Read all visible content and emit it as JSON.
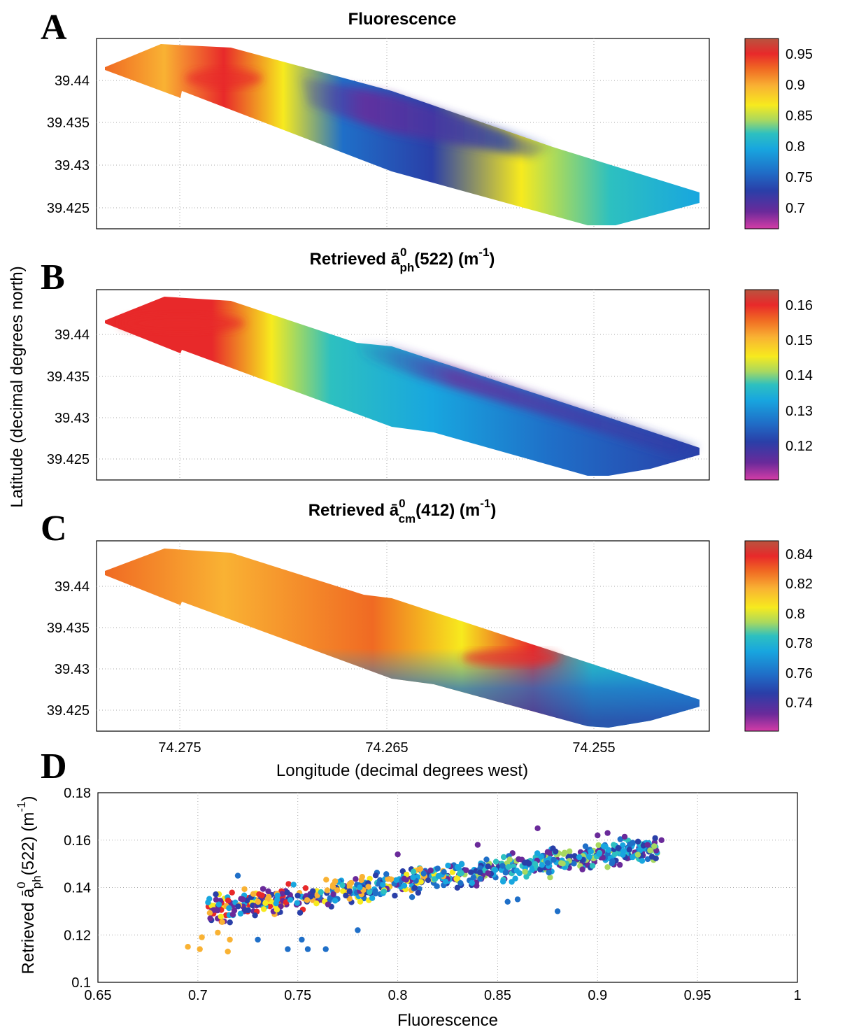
{
  "chart_data": [
    {
      "panel": "A",
      "type": "heatmap",
      "title": "Fluorescence",
      "ylabel": "Latitude (decimal degrees north)",
      "yticks": [
        "39.44",
        "39.435",
        "39.43",
        "39.425"
      ],
      "ylim": [
        39.4227,
        39.4447
      ],
      "colorbar": {
        "ticks": [
          "0.95",
          "0.9",
          "0.85",
          "0.8",
          "0.75",
          "0.7"
        ],
        "range": [
          0.665,
          0.975
        ]
      }
    },
    {
      "panel": "B",
      "type": "heatmap",
      "title_prefix": "Retrieved ",
      "title_symbol": "ā",
      "title_sup": "0",
      "title_sub": "ph",
      "title_mid": "(522) (m",
      "title_unit_sup": "-1",
      "title_suffix": ")",
      "yticks": [
        "39.44",
        "39.435",
        "39.43",
        "39.425"
      ],
      "colorbar": {
        "ticks": [
          "0.16",
          "0.15",
          "0.14",
          "0.13",
          "0.12"
        ],
        "range": [
          0.11,
          0.164
        ]
      }
    },
    {
      "panel": "C",
      "type": "heatmap",
      "title_prefix": "Retrieved ",
      "title_symbol": "ā",
      "title_sup": "0",
      "title_sub": "cm",
      "title_mid": "(412) (m",
      "title_unit_sup": "-1",
      "title_suffix": ")",
      "yticks": [
        "39.44",
        "39.435",
        "39.43",
        "39.425"
      ],
      "xticks": [
        "74.275",
        "74.265",
        "74.255"
      ],
      "xlabel": "Longitude (decimal degrees west)",
      "colorbar": {
        "ticks": [
          "0.84",
          "0.82",
          "0.8",
          "0.78",
          "0.76",
          "0.74"
        ],
        "range": [
          0.725,
          0.847
        ]
      }
    },
    {
      "panel": "D",
      "type": "scatter",
      "xlabel": "Fluorescence",
      "ylabel_prefix": "Retrieved ",
      "ylabel_symbol": "ā",
      "ylabel_sup": "0",
      "ylabel_sub": "ph",
      "ylabel_mid": "(522) (m",
      "ylabel_unit_sup": "-1",
      "ylabel_suffix": ")",
      "xlim": [
        0.65,
        1.0
      ],
      "ylim": [
        0.1,
        0.18
      ],
      "xticks": [
        "0.65",
        "0.7",
        "0.75",
        "0.8",
        "0.85",
        "0.9",
        "0.95",
        "1"
      ],
      "yticks": [
        "0.1",
        "0.12",
        "0.14",
        "0.16",
        "0.18"
      ],
      "grid": true,
      "sample_points": [
        [
          0.695,
          0.115
        ],
        [
          0.701,
          0.114
        ],
        [
          0.702,
          0.119
        ],
        [
          0.715,
          0.113
        ],
        [
          0.716,
          0.118
        ],
        [
          0.71,
          0.121
        ],
        [
          0.72,
          0.145
        ],
        [
          0.73,
          0.118
        ],
        [
          0.745,
          0.114
        ],
        [
          0.752,
          0.118
        ],
        [
          0.755,
          0.114
        ],
        [
          0.764,
          0.114
        ],
        [
          0.78,
          0.122
        ],
        [
          0.8,
          0.154
        ],
        [
          0.84,
          0.158
        ],
        [
          0.87,
          0.165
        ],
        [
          0.9,
          0.162
        ],
        [
          0.905,
          0.163
        ],
        [
          0.932,
          0.16
        ],
        [
          0.925,
          0.158
        ],
        [
          0.86,
          0.135
        ],
        [
          0.855,
          0.134
        ],
        [
          0.88,
          0.13
        ],
        [
          0.875,
          0.155
        ],
        [
          0.82,
          0.148
        ]
      ]
    }
  ],
  "palette": [
    "#d43ca6",
    "#6a2a9a",
    "#2a3fa8",
    "#1f6fc8",
    "#18a6df",
    "#2dc0c0",
    "#a8d860",
    "#f7ea1e",
    "#f9b233",
    "#f06a23",
    "#e8292a",
    "#b9543f"
  ],
  "panel_letters": [
    "A",
    "B",
    "C",
    "D"
  ]
}
